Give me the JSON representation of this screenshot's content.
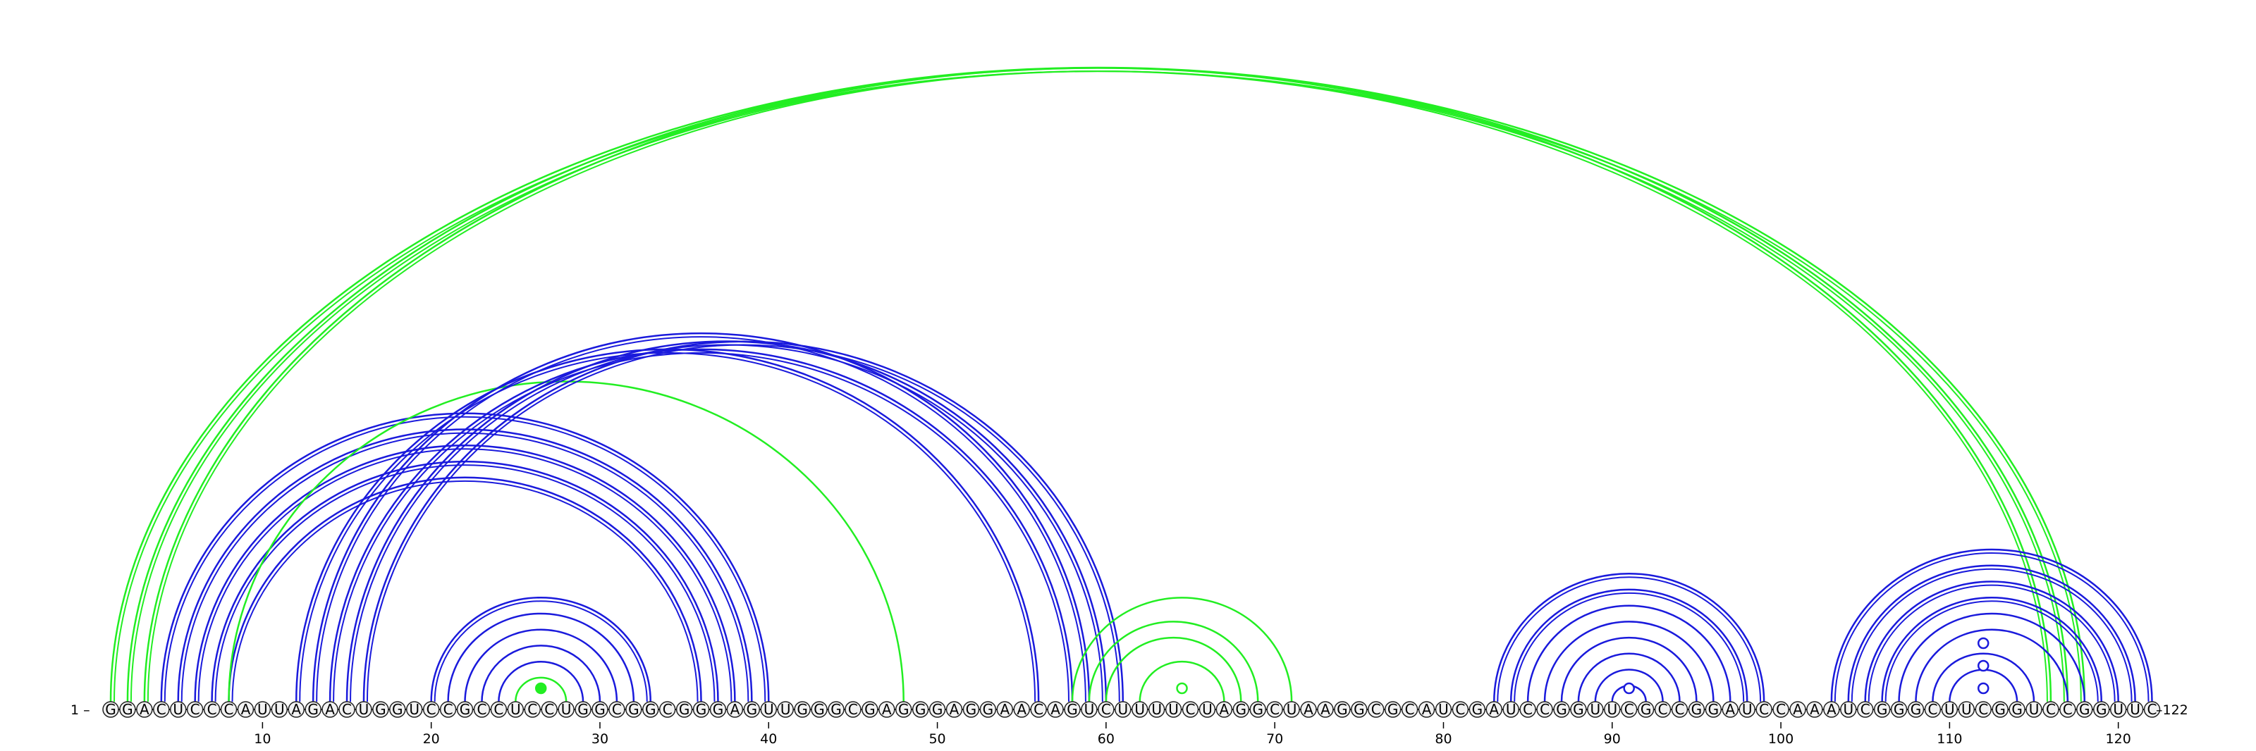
{
  "sequence": "GGACUCCCAUUAGACUGGUCCGCCUCCUGGCGGCGGGAGUUGGGCGAGGGAGGAACAGUCUUUUCUAGGCUAAGGCGCAUCGAUCCGGUUCGCCGGAUCCAAAUCGGGCUUCGGUCCGGUUC",
  "start_label": "1 –",
  "end_label": "–122",
  "ticks": [
    "10",
    "20",
    "30",
    "40",
    "50",
    "60",
    "70",
    "80",
    "90",
    "100",
    "110",
    "120"
  ],
  "colors": {
    "blue_arcs": "#1a1adc",
    "green_arcs": "#22ee22",
    "nucleotide_circle_fill": "#f2f2f2",
    "nucleotide_circle_stroke": "#222222",
    "backbone": "#000000"
  },
  "arc_groups": [
    {
      "color": "green",
      "pairs": [
        [
          1,
          118
        ],
        [
          2,
          117
        ],
        [
          3,
          116
        ]
      ]
    },
    {
      "color": "blue",
      "pairs": [
        [
          4,
          40
        ],
        [
          5,
          39
        ],
        [
          6,
          38
        ],
        [
          7,
          37
        ],
        [
          8,
          36
        ]
      ]
    },
    {
      "color": "green",
      "pairs": [
        [
          8,
          48
        ]
      ]
    },
    {
      "color": "blue",
      "pairs": [
        [
          12,
          56
        ],
        [
          13,
          59
        ],
        [
          14,
          58
        ],
        [
          15,
          60
        ],
        [
          16,
          61
        ]
      ]
    },
    {
      "color": "blue",
      "pairs": [
        [
          20,
          33
        ],
        [
          21,
          32
        ],
        [
          22,
          31
        ],
        [
          23,
          30
        ],
        [
          24,
          29
        ]
      ]
    },
    {
      "color": "green",
      "pairs": [
        [
          25,
          28
        ]
      ]
    },
    {
      "color": "green",
      "pairs": [
        [
          58,
          71
        ],
        [
          59,
          69
        ],
        [
          60,
          68
        ],
        [
          62,
          67
        ]
      ]
    },
    {
      "color": "blue",
      "pairs": [
        [
          83,
          99
        ],
        [
          84,
          98
        ],
        [
          85,
          97
        ],
        [
          86,
          96
        ],
        [
          87,
          95
        ],
        [
          88,
          94
        ],
        [
          89,
          93
        ],
        [
          90,
          92
        ]
      ]
    },
    {
      "color": "blue",
      "pairs": [
        [
          103,
          122
        ],
        [
          104,
          121
        ],
        [
          105,
          120
        ],
        [
          106,
          119
        ],
        [
          107,
          118
        ],
        [
          108,
          117
        ],
        [
          109,
          115
        ],
        [
          110,
          114
        ]
      ]
    }
  ],
  "hairpin_loops": [
    {
      "color": "green",
      "center": 26.5,
      "filled": true
    },
    {
      "color": "green",
      "center": 64.5,
      "filled": false
    },
    {
      "color": "blue",
      "center": 91,
      "filled": false
    },
    {
      "color": "blue",
      "center": 112,
      "filled": false
    },
    {
      "color": "blue",
      "center": 112,
      "filled": false,
      "level": 2
    },
    {
      "color": "blue",
      "center": 112,
      "filled": false,
      "level": 3
    }
  ]
}
